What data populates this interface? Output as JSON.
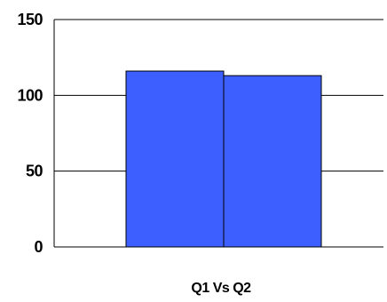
{
  "chart_data": {
    "type": "bar",
    "categories": [
      "Q1 Vs Q2"
    ],
    "series": [
      {
        "values": [
          116
        ]
      },
      {
        "values": [
          113
        ]
      }
    ],
    "xlabel": "Q1 Vs Q2",
    "ylim": [
      0,
      150
    ],
    "yticks": [
      0,
      50,
      100,
      150
    ],
    "grid": true,
    "legend": "none",
    "colors": {
      "bar_fill": "#3d5fff",
      "bar_stroke": "#000000",
      "axis": "#000000",
      "grid": "#000000"
    }
  }
}
